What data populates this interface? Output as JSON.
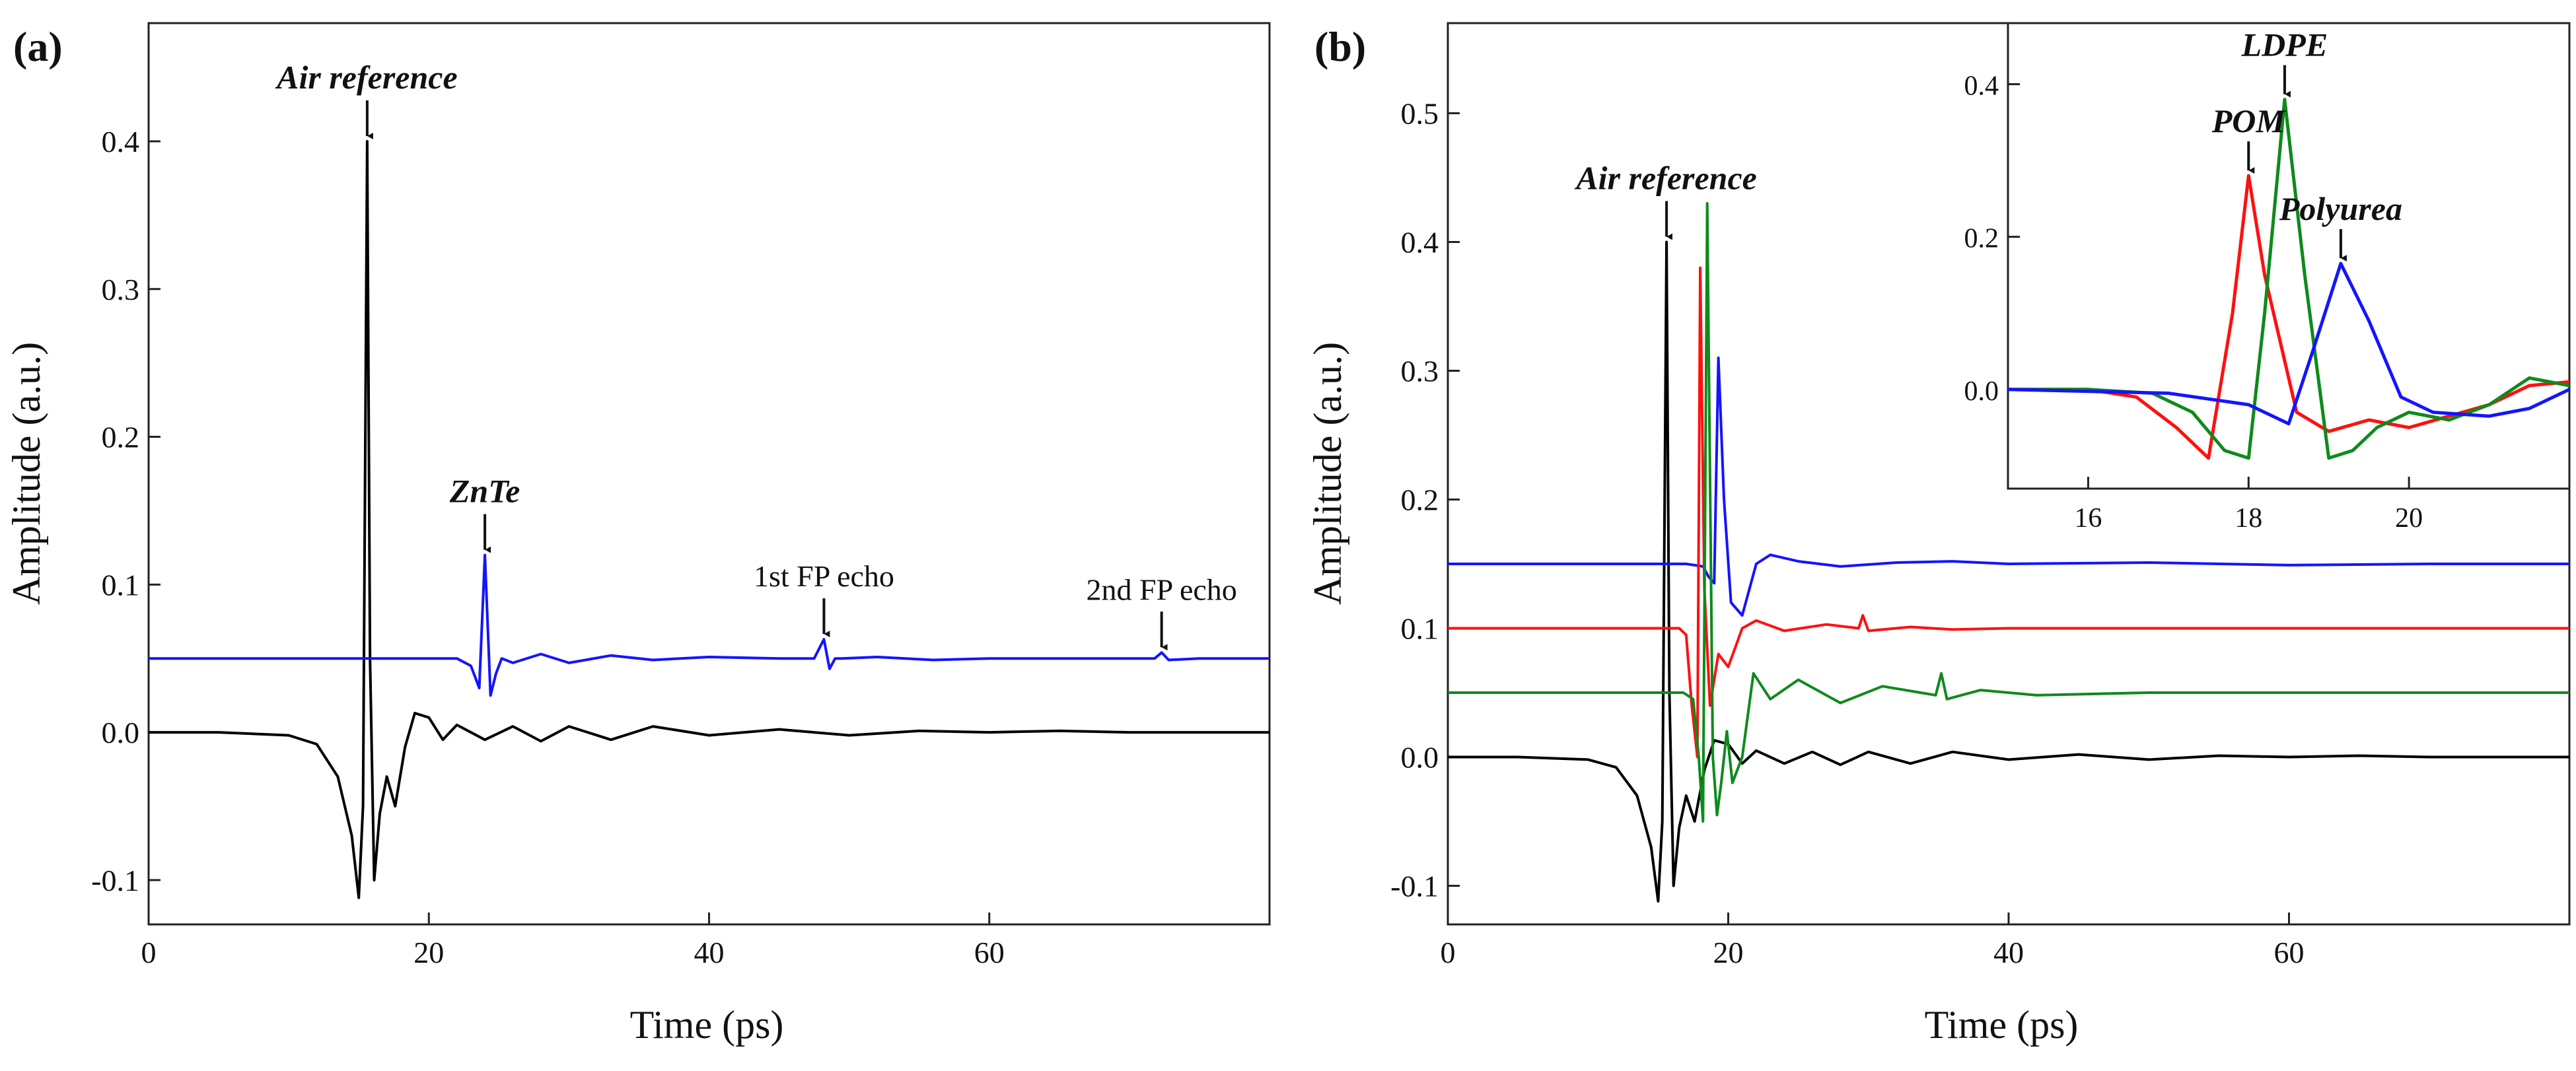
{
  "colors": {
    "black": "#000000",
    "blue": "#1414ff",
    "red": "#ff1010",
    "green": "#0f8a1c",
    "frame": "#222222"
  },
  "chart_data": [
    {
      "panel": "(a)",
      "type": "line",
      "xlabel": "Time (ps)",
      "ylabel": "Amplitude (a.u.)",
      "xlim": [
        0,
        80
      ],
      "ylim": [
        -0.13,
        0.48
      ],
      "xticks": [
        0,
        20,
        40,
        60
      ],
      "yticks": [
        -0.1,
        0.0,
        0.1,
        0.2,
        0.3,
        0.4
      ],
      "ytick_labels": [
        "-0.1",
        "0.0",
        "0.1",
        "0.2",
        "0.3",
        "0.4"
      ],
      "series": [
        {
          "color": "black",
          "x": [
            0,
            5,
            10,
            12,
            13.5,
            14.5,
            15.0,
            15.3,
            15.6,
            15.8,
            16.1,
            16.5,
            17.0,
            17.6,
            18.3,
            19.0,
            20.0,
            21.0,
            22.0,
            24,
            26,
            28,
            30,
            33,
            36,
            40,
            45,
            50,
            55,
            60,
            65,
            70,
            75,
            80
          ],
          "y": [
            0,
            0,
            -0.002,
            -0.008,
            -0.03,
            -0.07,
            -0.112,
            -0.05,
            0.4,
            0.05,
            -0.1,
            -0.055,
            -0.03,
            -0.05,
            -0.01,
            0.013,
            0.01,
            -0.005,
            0.005,
            -0.005,
            0.004,
            -0.006,
            0.004,
            -0.005,
            0.004,
            -0.002,
            0.002,
            -0.002,
            0.001,
            0,
            0.001,
            0,
            0,
            0
          ]
        },
        {
          "color": "blue",
          "x": [
            0,
            10,
            22,
            23.0,
            23.6,
            24.0,
            24.4,
            24.8,
            25.2,
            26,
            28,
            30,
            33,
            36,
            40,
            45,
            47.5,
            48.2,
            48.6,
            49.0,
            49.5,
            52,
            56,
            60,
            65,
            70,
            71.8,
            72.3,
            72.8,
            75,
            80
          ],
          "y": [
            0.05,
            0.05,
            0.05,
            0.045,
            0.03,
            0.12,
            0.025,
            0.04,
            0.05,
            0.047,
            0.053,
            0.047,
            0.052,
            0.049,
            0.051,
            0.05,
            0.05,
            0.063,
            0.043,
            0.05,
            0.05,
            0.051,
            0.049,
            0.05,
            0.05,
            0.05,
            0.05,
            0.054,
            0.049,
            0.05,
            0.05
          ]
        }
      ],
      "annotations": [
        {
          "text": "Air reference",
          "style": "bold",
          "x": 15.6,
          "y": 0.4
        },
        {
          "text": "ZnTe",
          "style": "bold",
          "x": 24.0,
          "y": 0.12
        },
        {
          "text": "1st FP echo",
          "style": "plain",
          "x": 48.2,
          "y": 0.063
        },
        {
          "text": "2nd FP echo",
          "style": "plain",
          "x": 72.3,
          "y": 0.054
        }
      ]
    },
    {
      "panel": "(b)",
      "type": "line",
      "xlabel": "Time (ps)",
      "ylabel": "Amplitude (a.u.)",
      "xlim": [
        0,
        80
      ],
      "ylim": [
        -0.13,
        0.57
      ],
      "xticks": [
        0,
        20,
        40,
        60
      ],
      "yticks": [
        -0.1,
        0.0,
        0.1,
        0.2,
        0.3,
        0.4,
        0.5
      ],
      "ytick_labels": [
        "-0.1",
        "0.0",
        "0.1",
        "0.2",
        "0.3",
        "0.4",
        "0.5"
      ],
      "series": [
        {
          "color": "black",
          "x": [
            0,
            5,
            10,
            12,
            13.5,
            14.5,
            15.0,
            15.3,
            15.6,
            15.8,
            16.1,
            16.5,
            17.0,
            17.6,
            18.3,
            19.0,
            20.0,
            21.0,
            22.0,
            24,
            26,
            28,
            30,
            33,
            36,
            40,
            45,
            50,
            55,
            60,
            65,
            70,
            75,
            80
          ],
          "y": [
            0,
            0,
            -0.002,
            -0.008,
            -0.03,
            -0.07,
            -0.112,
            -0.05,
            0.4,
            0.05,
            -0.1,
            -0.055,
            -0.03,
            -0.05,
            -0.01,
            0.013,
            0.01,
            -0.005,
            0.005,
            -0.005,
            0.004,
            -0.006,
            0.004,
            -0.005,
            0.004,
            -0.002,
            0.002,
            -0.002,
            0.001,
            0,
            0.001,
            0,
            0,
            0
          ]
        },
        {
          "color": "blue",
          "x": [
            0,
            10,
            17,
            18.2,
            18.6,
            19.0,
            19.3,
            19.7,
            20.2,
            21.0,
            22.0,
            23.0,
            25,
            28,
            32,
            36,
            40,
            50,
            60,
            70,
            80
          ],
          "y": [
            0.15,
            0.15,
            0.15,
            0.148,
            0.14,
            0.135,
            0.31,
            0.2,
            0.12,
            0.11,
            0.15,
            0.157,
            0.152,
            0.148,
            0.151,
            0.152,
            0.15,
            0.151,
            0.149,
            0.15,
            0.15
          ]
        },
        {
          "color": "red",
          "x": [
            0,
            10,
            16.5,
            17.0,
            17.4,
            17.8,
            18.0,
            18.3,
            18.7,
            19.3,
            20.0,
            21.0,
            22.0,
            24,
            27,
            29.3,
            29.6,
            30.0,
            33,
            36,
            40,
            50,
            60,
            70,
            80
          ],
          "y": [
            0.1,
            0.1,
            0.1,
            0.095,
            0.04,
            0.0,
            0.38,
            0.13,
            0.04,
            0.08,
            0.07,
            0.1,
            0.106,
            0.098,
            0.103,
            0.1,
            0.11,
            0.098,
            0.101,
            0.099,
            0.1,
            0.1,
            0.1,
            0.1,
            0.1
          ]
        },
        {
          "color": "green",
          "x": [
            0,
            10,
            16.8,
            17.5,
            17.9,
            18.2,
            18.5,
            18.9,
            19.2,
            19.5,
            19.9,
            20.3,
            21.0,
            21.8,
            23,
            25,
            28,
            31,
            34.8,
            35.2,
            35.6,
            38,
            42,
            50,
            60,
            70,
            80
          ],
          "y": [
            0.05,
            0.05,
            0.05,
            0.045,
            0.0,
            -0.05,
            0.43,
            0.0,
            -0.045,
            -0.02,
            0.02,
            -0.02,
            0.0,
            0.065,
            0.045,
            0.06,
            0.042,
            0.055,
            0.048,
            0.065,
            0.045,
            0.052,
            0.048,
            0.05,
            0.05,
            0.05,
            0.05
          ]
        }
      ],
      "annotations": [
        {
          "text": "Air reference",
          "style": "bold",
          "x": 15.6,
          "y": 0.4
        }
      ],
      "inset": {
        "xlim": [
          15,
          22
        ],
        "ylim": [
          -0.13,
          0.48
        ],
        "xticks": [
          16,
          18,
          20
        ],
        "yticks": [
          0.0,
          0.2,
          0.4
        ],
        "ytick_labels": [
          "0.0",
          "0.2",
          "0.4"
        ],
        "series": [
          {
            "color": "red",
            "x": [
              15,
              16,
              16.6,
              17.1,
              17.5,
              17.8,
              18.0,
              18.2,
              18.6,
              19.0,
              19.5,
              20.0,
              20.5,
              21.0,
              21.5,
              22
            ],
            "y": [
              0,
              0,
              -0.01,
              -0.05,
              -0.09,
              0.1,
              0.28,
              0.15,
              -0.03,
              -0.055,
              -0.04,
              -0.05,
              -0.035,
              -0.02,
              0.005,
              0.01
            ]
          },
          {
            "color": "green",
            "x": [
              15,
              16,
              16.8,
              17.3,
              17.7,
              18.0,
              18.2,
              18.45,
              18.7,
              19.0,
              19.3,
              19.6,
              20.0,
              20.5,
              21.0,
              21.5,
              22
            ],
            "y": [
              0,
              0,
              -0.005,
              -0.03,
              -0.08,
              -0.09,
              0.1,
              0.38,
              0.15,
              -0.09,
              -0.08,
              -0.05,
              -0.03,
              -0.04,
              -0.02,
              0.015,
              0.005
            ]
          },
          {
            "color": "blue",
            "x": [
              15,
              17,
              18.0,
              18.5,
              18.8,
              19.15,
              19.5,
              19.9,
              20.3,
              21.0,
              21.5,
              22
            ],
            "y": [
              0,
              -0.005,
              -0.02,
              -0.045,
              0.05,
              0.165,
              0.09,
              -0.01,
              -0.03,
              -0.035,
              -0.025,
              0
            ]
          }
        ],
        "annotations": [
          {
            "text": "POM",
            "x": 18.0,
            "y": 0.28
          },
          {
            "text": "LDPE",
            "x": 18.45,
            "y": 0.38
          },
          {
            "text": "Polyurea",
            "x": 19.15,
            "y": 0.165
          }
        ]
      }
    }
  ]
}
